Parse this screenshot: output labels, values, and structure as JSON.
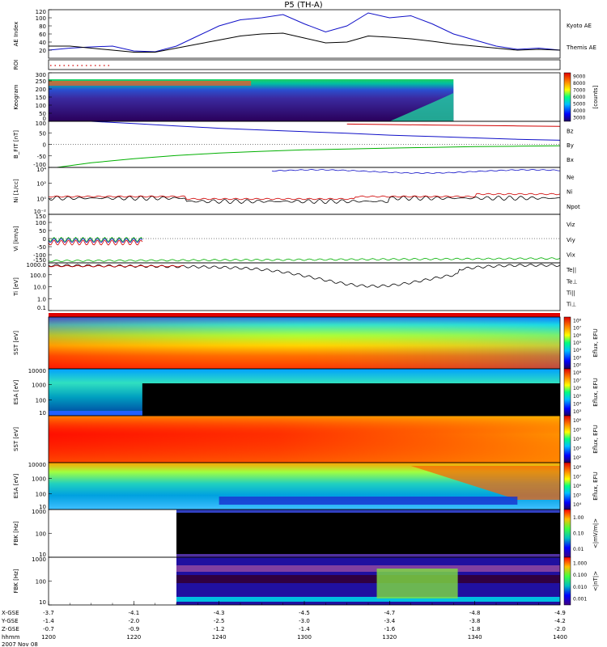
{
  "chart_data": {
    "type": "line",
    "title": "P5 (TH-A)",
    "date": "2007 Nov 08",
    "x_axis": {
      "unit": "hhmm",
      "range": [
        "1200",
        "1400"
      ],
      "ticks": [
        "1200",
        "1220",
        "1240",
        "1300",
        "1320",
        "1340",
        "1400"
      ],
      "ephemeris_rows": [
        {
          "name": "X-GSE",
          "values": [
            "-3.7",
            "-4.1",
            "-4.3",
            "-4.5",
            "-4.7",
            "-4.8",
            "-4.9"
          ]
        },
        {
          "name": "Y-GSE",
          "values": [
            "-1.4",
            "-2.0",
            "-2.5",
            "-3.0",
            "-3.4",
            "-3.8",
            "-4.2"
          ]
        },
        {
          "name": "Z-GSE",
          "values": [
            "-0.7",
            "-0.9",
            "-1.2",
            "-1.4",
            "-1.6",
            "-1.8",
            "-2.0"
          ]
        }
      ]
    },
    "panels": [
      {
        "id": "ae",
        "ylabel": "AE Index",
        "ticks": [
          "20",
          "40",
          "60",
          "80",
          "100",
          "120"
        ],
        "ylim": [
          0,
          120
        ],
        "series": [
          {
            "name": "Kyoto AE",
            "color": "#1010c8",
            "x": [
              1200,
              1205,
              1210,
              1215,
              1220,
              1225,
              1230,
              1235,
              1240,
              1245,
              1250,
              1255,
              1300,
              1305,
              1310,
              1315,
              1320,
              1325,
              1330,
              1335,
              1340,
              1345,
              1350,
              1355,
              1400
            ],
            "y": [
              20,
              25,
              28,
              30,
              18,
              16,
              30,
              55,
              80,
              95,
              100,
              108,
              85,
              65,
              80,
              112,
              100,
              105,
              85,
              60,
              45,
              30,
              22,
              25,
              20
            ]
          },
          {
            "name": "Themis AE",
            "color": "#000000",
            "x": [
              1200,
              1205,
              1210,
              1215,
              1220,
              1225,
              1230,
              1235,
              1240,
              1245,
              1250,
              1255,
              1300,
              1305,
              1310,
              1315,
              1320,
              1325,
              1330,
              1335,
              1340,
              1345,
              1350,
              1355,
              1400
            ],
            "y": [
              30,
              30,
              25,
              20,
              15,
              15,
              25,
              35,
              45,
              55,
              60,
              62,
              50,
              38,
              40,
              55,
              52,
              48,
              42,
              35,
              30,
              25,
              20,
              22,
              20
            ]
          }
        ]
      },
      {
        "id": "roi",
        "ylabel": "ROI"
      },
      {
        "id": "keogram",
        "ylabel": "Keogram",
        "ticks": [
          "0",
          "50",
          "100",
          "150",
          "200",
          "250",
          "300"
        ],
        "ylim": [
          0,
          300
        ],
        "colorbar": {
          "label": "[counts]",
          "ticks": [
            "3000",
            "4000",
            "5000",
            "6000",
            "7000",
            "8000",
            "9000"
          ]
        }
      },
      {
        "id": "bfield",
        "ylabel": "B_FIT [nT]",
        "ticks": [
          "-100",
          "-50",
          "0",
          "50",
          "100"
        ],
        "ylim": [
          -100,
          100
        ],
        "series": [
          {
            "name": "Bz",
            "color": "#d00000",
            "x": [
              1310,
              1320,
              1330,
              1340,
              1350,
              1400
            ],
            "y": [
              88,
              86,
              84,
              82,
              80,
              78
            ]
          },
          {
            "name": "By",
            "color": "#00b000",
            "x": [
              1202,
              1210,
              1220,
              1230,
              1240,
              1250,
              1300,
              1310,
              1320,
              1330,
              1340,
              1350,
              1400
            ],
            "y": [
              -100,
              -80,
              -62,
              -48,
              -38,
              -30,
              -24,
              -20,
              -16,
              -13,
              -10,
              -8,
              -6
            ]
          },
          {
            "name": "Bx",
            "color": "#1010c8",
            "x": [
              1210,
              1220,
              1230,
              1240,
              1250,
              1300,
              1310,
              1320,
              1330,
              1340,
              1350,
              1400
            ],
            "y": [
              100,
              90,
              80,
              70,
              62,
              55,
              48,
              40,
              34,
              28,
              22,
              18
            ]
          }
        ]
      },
      {
        "id": "density",
        "ylabel": "Ni [1/cc]",
        "ticks": [
          "10⁻²",
          "10⁰",
          "10²",
          "10⁴"
        ],
        "series": [
          {
            "name": "Ne",
            "color": "#d00000"
          },
          {
            "name": "Ni",
            "color": "#000000"
          },
          {
            "name": "Npot",
            "color": "#1010c8"
          }
        ]
      },
      {
        "id": "velocity",
        "ylabel": "Vi [km/s]",
        "ticks": [
          "-150",
          "-100",
          "-50",
          "0",
          "50",
          "100",
          "150"
        ],
        "ylim": [
          -150,
          150
        ],
        "series": [
          {
            "name": "Viz",
            "color": "#d00000"
          },
          {
            "name": "Viy",
            "color": "#00b000"
          },
          {
            "name": "Vix",
            "color": "#1010c8"
          }
        ]
      },
      {
        "id": "temperature",
        "ylabel": "Ti [eV]",
        "ticks": [
          "0.1",
          "1.0",
          "10.0",
          "100.0",
          "1000.0"
        ],
        "series": [
          {
            "name": "Te||",
            "color": "#000000"
          },
          {
            "name": "Te⊥",
            "color": "#d00000"
          },
          {
            "name": "Ti||",
            "color": "#00b000"
          },
          {
            "name": "Ti⊥",
            "color": "#1010c8"
          }
        ]
      },
      {
        "id": "sst_e",
        "ylabel": "SST [eV]",
        "colorbar": {
          "label": "Eflux, EFU",
          "ticks": [
            "10²",
            "10³",
            "10⁴",
            "10⁵",
            "10⁶",
            "10⁷",
            "10⁸"
          ]
        }
      },
      {
        "id": "esa_e",
        "ylabel": "ESA [eV]",
        "ticks": [
          "10",
          "100",
          "1000",
          "10000"
        ],
        "colorbar": {
          "label": "Eflux, EFU",
          "ticks": [
            "10³",
            "10⁴",
            "10⁵",
            "10⁶",
            "10⁷",
            "10⁸"
          ]
        }
      },
      {
        "id": "sst_i",
        "ylabel": "SST [eV]",
        "colorbar": {
          "label": "Eflux, EFU",
          "ticks": [
            "10²",
            "10³",
            "10⁴",
            "10⁵",
            "10⁶"
          ]
        }
      },
      {
        "id": "esa_i",
        "ylabel": "ESA [eV]",
        "ticks": [
          "10",
          "100",
          "1000",
          "10000"
        ],
        "colorbar": {
          "label": "Eflux, EFU",
          "ticks": [
            "10⁴",
            "10⁵",
            "10⁶",
            "10⁷",
            "10⁸"
          ]
        }
      },
      {
        "id": "fbk_e",
        "ylabel": "FBK [Hz]",
        "ticks": [
          "10",
          "100",
          "1000"
        ],
        "colorbar": {
          "label": "<|mV/m|>",
          "ticks": [
            "0.01",
            "0.10",
            "1.00"
          ]
        }
      },
      {
        "id": "fbk_b",
        "ylabel": "FBK [Hz]",
        "ticks": [
          "10",
          "100",
          "1000"
        ],
        "colorbar": {
          "label": "<|nT|>",
          "ticks": [
            "0.001",
            "0.010",
            "0.100",
            "1.000"
          ]
        }
      }
    ]
  }
}
